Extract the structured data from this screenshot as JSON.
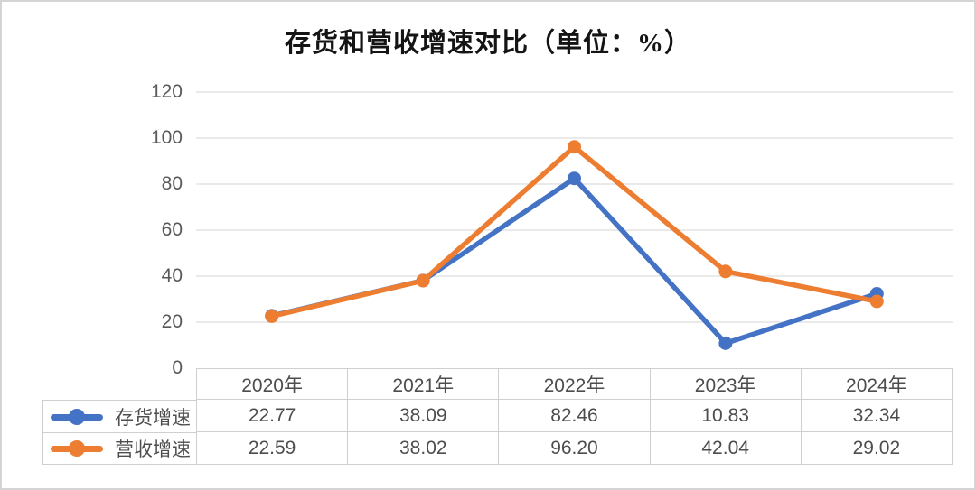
{
  "page": {
    "title": "存货和营收增速对比（单位：%）"
  },
  "chart_data": {
    "type": "line",
    "title": "存货和营收增速对比（单位：%）",
    "categories": [
      "2020年",
      "2021年",
      "2022年",
      "2023年",
      "2024年"
    ],
    "series": [
      {
        "name": "存货增速",
        "color": "#4472C4",
        "values": [
          22.77,
          38.09,
          82.46,
          10.83,
          32.34
        ]
      },
      {
        "name": "营收增速",
        "color": "#ED7D31",
        "values": [
          22.59,
          38.02,
          96.2,
          42.04,
          29.02
        ]
      }
    ],
    "ylim": [
      0,
      120
    ],
    "yticks": [
      0,
      20,
      40,
      60,
      80,
      100,
      120
    ],
    "grid": "horizontal",
    "legend_position": "table-left",
    "colors": {
      "grid_line": "#e4e4e4",
      "table_border": "#cfcfcf",
      "axis_text": "#595959",
      "table_text": "#4d4d4d"
    }
  }
}
